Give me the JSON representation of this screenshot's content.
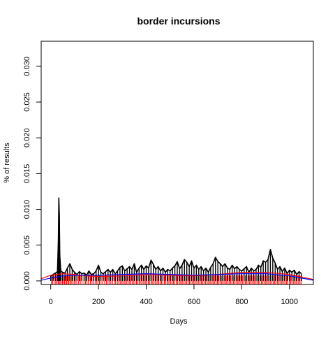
{
  "chart_data": {
    "type": "line",
    "title": "border incursions",
    "xlabel": "Days",
    "ylabel": "% of results",
    "xlim": [
      -40,
      1100
    ],
    "ylim": [
      -0.0005,
      0.0335
    ],
    "x_ticks": [
      0,
      200,
      400,
      600,
      800,
      1000
    ],
    "x_tick_labels": [
      "0",
      "200",
      "400",
      "600",
      "800",
      "1000"
    ],
    "y_ticks": [
      0.0,
      0.005,
      0.01,
      0.015,
      0.02,
      0.025,
      0.03
    ],
    "y_tick_labels": [
      "0.000",
      "0.005",
      "0.010",
      "0.015",
      "0.020",
      "0.025",
      "0.030"
    ],
    "grid": false,
    "legend": "none",
    "colors": {
      "series": "#000000",
      "smooth_red": "#ff0000",
      "smooth_blue": "#0000ff",
      "rug": "#ff0000"
    },
    "series": [
      {
        "values_by_x": [
          [
            0,
            0.0007
          ],
          [
            10,
            0.0009
          ],
          [
            20,
            0.0011
          ],
          [
            28,
            0.0013
          ],
          [
            32,
            0.0055
          ],
          [
            34,
            0.0116
          ],
          [
            36,
            0.0092
          ],
          [
            38,
            0.0035
          ],
          [
            42,
            0.0014
          ],
          [
            50,
            0.0012
          ],
          [
            60,
            0.0011
          ],
          [
            70,
            0.0018
          ],
          [
            80,
            0.0024
          ],
          [
            90,
            0.0016
          ],
          [
            100,
            0.0012
          ],
          [
            110,
            0.0009
          ],
          [
            120,
            0.0013
          ],
          [
            130,
            0.001
          ],
          [
            140,
            0.0011
          ],
          [
            150,
            0.0008
          ],
          [
            160,
            0.0014
          ],
          [
            170,
            0.0009
          ],
          [
            180,
            0.001
          ],
          [
            190,
            0.0014
          ],
          [
            200,
            0.0022
          ],
          [
            210,
            0.0012
          ],
          [
            220,
            0.001
          ],
          [
            230,
            0.0013
          ],
          [
            240,
            0.0016
          ],
          [
            250,
            0.0012
          ],
          [
            260,
            0.0016
          ],
          [
            270,
            0.001
          ],
          [
            280,
            0.0014
          ],
          [
            290,
            0.0019
          ],
          [
            300,
            0.0021
          ],
          [
            310,
            0.0014
          ],
          [
            320,
            0.0017
          ],
          [
            330,
            0.002
          ],
          [
            340,
            0.0016
          ],
          [
            350,
            0.0024
          ],
          [
            360,
            0.0012
          ],
          [
            370,
            0.0018
          ],
          [
            380,
            0.0022
          ],
          [
            390,
            0.0016
          ],
          [
            400,
            0.0021
          ],
          [
            410,
            0.0018
          ],
          [
            420,
            0.0029
          ],
          [
            430,
            0.0023
          ],
          [
            440,
            0.0016
          ],
          [
            450,
            0.002
          ],
          [
            460,
            0.0014
          ],
          [
            470,
            0.0018
          ],
          [
            480,
            0.0012
          ],
          [
            490,
            0.0016
          ],
          [
            500,
            0.0014
          ],
          [
            510,
            0.0018
          ],
          [
            520,
            0.0021
          ],
          [
            530,
            0.0027
          ],
          [
            540,
            0.0017
          ],
          [
            550,
            0.0022
          ],
          [
            560,
            0.003
          ],
          [
            570,
            0.0026
          ],
          [
            580,
            0.002
          ],
          [
            590,
            0.0028
          ],
          [
            600,
            0.0018
          ],
          [
            610,
            0.0022
          ],
          [
            620,
            0.0016
          ],
          [
            630,
            0.002
          ],
          [
            640,
            0.0014
          ],
          [
            650,
            0.0018
          ],
          [
            660,
            0.0012
          ],
          [
            670,
            0.0019
          ],
          [
            680,
            0.0024
          ],
          [
            690,
            0.0033
          ],
          [
            700,
            0.0027
          ],
          [
            710,
            0.0024
          ],
          [
            720,
            0.002
          ],
          [
            730,
            0.0024
          ],
          [
            740,
            0.0018
          ],
          [
            750,
            0.0016
          ],
          [
            760,
            0.0022
          ],
          [
            770,
            0.0017
          ],
          [
            780,
            0.002
          ],
          [
            790,
            0.0016
          ],
          [
            800,
            0.0014
          ],
          [
            810,
            0.0017
          ],
          [
            820,
            0.002
          ],
          [
            830,
            0.0012
          ],
          [
            840,
            0.0018
          ],
          [
            850,
            0.0014
          ],
          [
            860,
            0.0016
          ],
          [
            870,
            0.0022
          ],
          [
            880,
            0.0019
          ],
          [
            890,
            0.0028
          ],
          [
            900,
            0.0026
          ],
          [
            910,
            0.003
          ],
          [
            920,
            0.0044
          ],
          [
            930,
            0.0032
          ],
          [
            940,
            0.0025
          ],
          [
            950,
            0.0016
          ],
          [
            960,
            0.002
          ],
          [
            970,
            0.0013
          ],
          [
            980,
            0.0018
          ],
          [
            990,
            0.001
          ],
          [
            1000,
            0.0015
          ],
          [
            1010,
            0.0012
          ],
          [
            1020,
            0.0015
          ],
          [
            1030,
            0.0009
          ],
          [
            1040,
            0.0013
          ],
          [
            1050,
            0.001
          ]
        ]
      }
    ],
    "smooth_red": [
      [
        -40,
        0.0003
      ],
      [
        0,
        0.0008
      ],
      [
        50,
        0.001
      ],
      [
        100,
        0.0009
      ],
      [
        150,
        0.0007
      ],
      [
        200,
        0.0006
      ],
      [
        300,
        0.0007
      ],
      [
        400,
        0.0009
      ],
      [
        500,
        0.0008
      ],
      [
        600,
        0.0007
      ],
      [
        700,
        0.0009
      ],
      [
        800,
        0.0012
      ],
      [
        900,
        0.0012
      ],
      [
        1000,
        0.0009
      ],
      [
        1100,
        0.0002
      ]
    ],
    "smooth_blue": [
      [
        -40,
        0.0001
      ],
      [
        0,
        0.0004
      ],
      [
        50,
        0.0007
      ],
      [
        100,
        0.0008
      ],
      [
        200,
        0.0008
      ],
      [
        300,
        0.0009
      ],
      [
        400,
        0.001
      ],
      [
        500,
        0.0009
      ],
      [
        600,
        0.0008
      ],
      [
        700,
        0.0009
      ],
      [
        800,
        0.001
      ],
      [
        900,
        0.001
      ],
      [
        1000,
        0.0007
      ],
      [
        1100,
        0.0001
      ]
    ],
    "rug_x": [
      3,
      8,
      14,
      21,
      26,
      31,
      35,
      39,
      44,
      49,
      53,
      58,
      63,
      67,
      72,
      76,
      81,
      86,
      92,
      98,
      103,
      109,
      117,
      124,
      131,
      139,
      146,
      152,
      158,
      166,
      173,
      179,
      186,
      193,
      198,
      204,
      211,
      218,
      226,
      233,
      240,
      246,
      252,
      259,
      266,
      272,
      279,
      285,
      291,
      297,
      302,
      308,
      314,
      319,
      325,
      331,
      336,
      342,
      348,
      353,
      359,
      364,
      370,
      375,
      381,
      387,
      392,
      398,
      403,
      409,
      414,
      420,
      425,
      431,
      437,
      442,
      448,
      453,
      459,
      464,
      470,
      476,
      481,
      487,
      492,
      498,
      503,
      509,
      514,
      520,
      526,
      531,
      537,
      542,
      548,
      553,
      559,
      565,
      570,
      576,
      581,
      587,
      592,
      598,
      603,
      609,
      615,
      620,
      626,
      631,
      637,
      642,
      648,
      654,
      659,
      665,
      670,
      676,
      681,
      687,
      693,
      698,
      704,
      709,
      715,
      720,
      726,
      732,
      737,
      743,
      748,
      754,
      759,
      765,
      771,
      776,
      782,
      787,
      793,
      798,
      804,
      810,
      815,
      821,
      826,
      832,
      837,
      843,
      849,
      854,
      860,
      865,
      871,
      876,
      882,
      888,
      893,
      899,
      904,
      910,
      915,
      921,
      927,
      932,
      938,
      943,
      949,
      954,
      960,
      966,
      971,
      977,
      982,
      988,
      993,
      999,
      1005,
      1010,
      1016,
      1021,
      1027,
      1032,
      1038,
      1044,
      1049
    ]
  }
}
